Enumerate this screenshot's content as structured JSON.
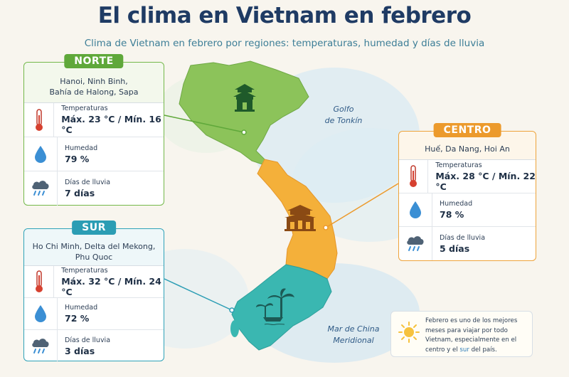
{
  "title": "El clima en Vietnam en febrero",
  "subtitle": "Clima de Vietnam en febrero por regiones: temperaturas, humedad y días de lluvia",
  "colors": {
    "norte": "#5fa83a",
    "centro": "#ec9a2c",
    "sur": "#2b9db4",
    "title": "#1f3b64"
  },
  "map": {
    "gulf_label_1": "Golfo",
    "gulf_label_2": "de Tonkín",
    "sea_label_1": "Mar de China",
    "sea_label_2": "Meridional",
    "landmark_icons": [
      "pagoda-icon",
      "citadel-gate-icon",
      "palm-trees-icon",
      "boat-icon"
    ]
  },
  "norte": {
    "name": "NORTE",
    "places_1": "Hanoi, Ninh Binh,",
    "places_2": "Bahía de Halong, Sapa",
    "temp_label": "Temperaturas",
    "temp_value": "Máx. 23 °C / Mín. 16 °C",
    "humidity_label": "Humedad",
    "humidity_value": "79 %",
    "rain_label": "Días de lluvia",
    "rain_value": "7 días"
  },
  "centro": {
    "name": "CENTRO",
    "places_1": "Huế, Da Nang, Hoi An",
    "temp_label": "Temperaturas",
    "temp_value": "Máx. 28 °C / Mín. 22 °C",
    "humidity_label": "Humedad",
    "humidity_value": "78 %",
    "rain_label": "Días de lluvia",
    "rain_value": "5 días"
  },
  "sur": {
    "name": "SUR",
    "places_1": "Ho Chi Minh, Delta del Mekong,",
    "places_2": "Phu Quoc",
    "temp_label": "Temperaturas",
    "temp_value": "Máx. 32 °C / Mín. 24 °C",
    "humidity_label": "Humedad",
    "humidity_value": "72 %",
    "rain_label": "Días de lluvia",
    "rain_value": "3 días"
  },
  "note": {
    "text_1": "Febrero es uno de los mejores meses para viajar por todo Vietnam, especialmente en el centro y el ",
    "text_highlight": "sur",
    "text_2": " del país.",
    "icon": "sun-icon"
  }
}
